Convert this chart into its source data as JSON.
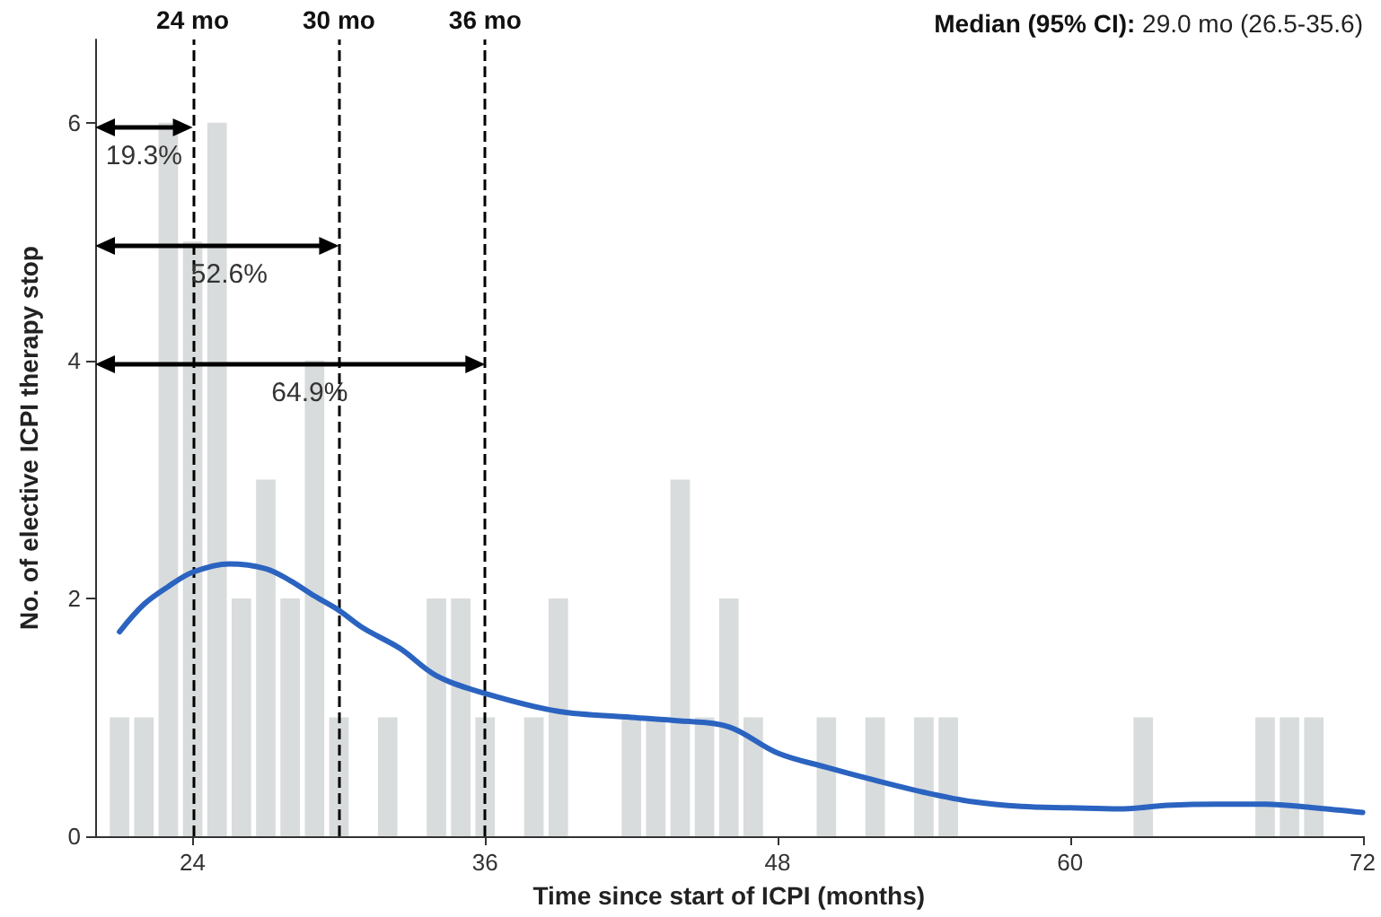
{
  "chart_data": {
    "type": "histogram",
    "xlabel": "Time since start of ICPI (months)",
    "ylabel": "No. of elective ICPI therapy stop",
    "bins": [
      20.5,
      21.5,
      22.5,
      23.5,
      24.5,
      25.5,
      26.5,
      27.5,
      28.5,
      29.5,
      30.5,
      31.5,
      32.5,
      33.5,
      34.5,
      35.5,
      36.5,
      37.5,
      38.5,
      39.5,
      40.5,
      41.5,
      42.5,
      43.5,
      44.5,
      45.5,
      46.5,
      47.5,
      48.5,
      49.5,
      50.5,
      51.5,
      52.5,
      53.5,
      54.5,
      55.5,
      56.5,
      57.5,
      58.5,
      59.5,
      60.5,
      61.5,
      62.5,
      63.5,
      64.5,
      65.5,
      66.5,
      67.5,
      68.5,
      69.5,
      70.5
    ],
    "series": [
      {
        "color": "#d9dcdc",
        "values": [
          1,
          1,
          6,
          5,
          6,
          2,
          3,
          2,
          4,
          1,
          0,
          1,
          0,
          2,
          2,
          1,
          0,
          1,
          2,
          0,
          0,
          1,
          1,
          3,
          1,
          2,
          1,
          0,
          0,
          1,
          0,
          1,
          0,
          1,
          1,
          0,
          0,
          0,
          0,
          0,
          0,
          0,
          1,
          0,
          0,
          0,
          0,
          1,
          1,
          1
        ]
      },
      {
        "type": "line",
        "color": "#2b63c0",
        "x": [
          21,
          22,
          23,
          24,
          25.5,
          27,
          28,
          29,
          30,
          31,
          32.5,
          34,
          36,
          39,
          42,
          44,
          46,
          48,
          50,
          52,
          54,
          56,
          58,
          60,
          62,
          64,
          66,
          68,
          70,
          72
        ],
        "values": [
          1.72,
          1.95,
          2.1,
          2.22,
          2.29,
          2.25,
          2.15,
          2.02,
          1.9,
          1.75,
          1.58,
          1.35,
          1.2,
          1.05,
          1.0,
          0.97,
          0.92,
          0.7,
          0.58,
          0.47,
          0.37,
          0.29,
          0.25,
          0.24,
          0.23,
          0.26,
          0.27,
          0.27,
          0.24,
          0.2
        ]
      }
    ],
    "xlim": [
      20,
      72
    ],
    "xticks": [
      24,
      36,
      48,
      60,
      72
    ],
    "ylim": [
      0,
      6.7
    ],
    "yticks": [
      0,
      2,
      4,
      6
    ],
    "grid": false,
    "marker": "none",
    "ref_lines": [
      {
        "axis": "x",
        "value": 24,
        "label": "24 mo",
        "line_style": "dashed",
        "color": "#000000"
      },
      {
        "axis": "x",
        "value": 30,
        "label": "30 mo",
        "line_style": "dashed",
        "color": "#000000"
      },
      {
        "axis": "x",
        "value": 36,
        "label": "36 mo",
        "line_style": "dashed",
        "color": "#000000"
      }
    ],
    "annotations": [
      "19.3%",
      "52.6%",
      "64.9%",
      "Median (95% CI): 29.0 mo (26.5-35.6)"
    ]
  }
}
